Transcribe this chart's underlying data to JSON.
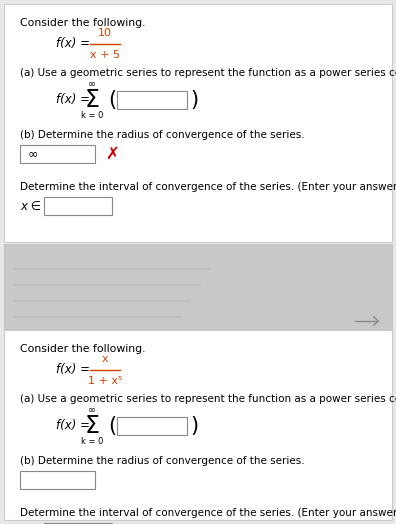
{
  "bg_color": "#e8e8e8",
  "panel_color": "#ffffff",
  "panel1": {
    "consider_text": "Consider the following.",
    "func_label": "f(x) =",
    "func_numerator": "10",
    "func_denominator": "x + 5",
    "part_a_text": "(a) Use a geometric series to represent the function as a power series centered",
    "series_label": "f(x) =",
    "sigma_text": "Σ",
    "k_text": "k = 0",
    "inf_text": "∞",
    "part_b_text": "(b) Determine the radius of convergence of the series.",
    "radius_box_value": "∞",
    "has_x_mark": true,
    "x_mark_color": "#cc0000",
    "interval_text": "Determine the interval of convergence of the series. (Enter your answer using i",
    "xe_text": "x ∈"
  },
  "panel2": {
    "consider_text": "Consider the following.",
    "func_label": "f(x) =",
    "func_numerator": "x",
    "func_denominator": "1 + x⁵",
    "part_a_text": "(a) Use a geometric series to represent the function as a power series centered",
    "series_label": "f(x) =",
    "sigma_text": "Σ",
    "k_text": "k = 0",
    "inf_text": "∞",
    "part_b_text": "(b) Determine the radius of convergence of the series.",
    "has_x_mark": false,
    "interval_text": "Determine the interval of convergence of the series. (Enter your answer using i",
    "xe_text": "x ∈"
  },
  "text_color": "#000000",
  "border_color": "#cccccc",
  "input_box_color": "#ffffff",
  "input_box_border": "#888888"
}
